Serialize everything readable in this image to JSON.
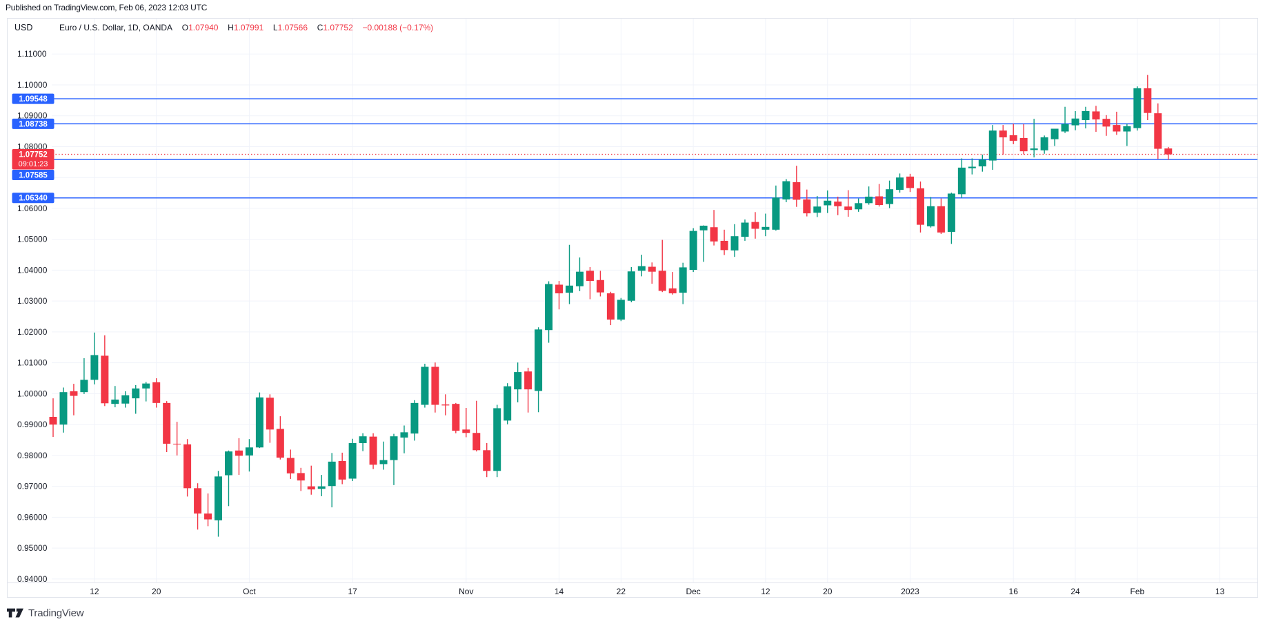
{
  "published_bar": {
    "text": "Published on TradingView.com, Feb 06, 2023 12:03 UTC"
  },
  "header": {
    "currency": "USD",
    "symbol_title": "Euro / U.S. Dollar, 1D, OANDA",
    "legend": {
      "o_label": "O",
      "o_value": "1.07940",
      "h_label": "H",
      "h_value": "1.07991",
      "l_label": "L",
      "l_value": "1.07566",
      "c_label": "C",
      "c_value": "1.07752",
      "change": "−0.00188 (−0.17%)"
    }
  },
  "footer": {
    "brand": "TradingView"
  },
  "colors": {
    "up": "#089981",
    "down": "#f23645",
    "level_line": "#2962ff",
    "last_price_line": "#f23645",
    "grid": "#f0f3fa",
    "border": "#e0e3eb",
    "text": "#131722",
    "brand_text": "#434651"
  },
  "price_axis": {
    "labels": [
      "1.11000",
      "1.10000",
      "1.09000",
      "1.08000",
      "1.06000",
      "1.05000",
      "1.04000",
      "1.03000",
      "1.02000",
      "1.01000",
      "1.00000",
      "0.99000",
      "0.98000",
      "0.97000",
      "0.96000",
      "0.95000",
      "0.94000"
    ],
    "grid_min": 0.94,
    "grid_max": 1.11,
    "grid_step": 0.01
  },
  "levels": {
    "blue_lines": [
      {
        "price": 1.09548,
        "label": "1.09548"
      },
      {
        "price": 1.08738,
        "label": "1.08738"
      },
      {
        "price": 1.07585,
        "label": "1.07585"
      },
      {
        "price": 1.0634,
        "label": "1.06340"
      }
    ],
    "last_price": {
      "price": 1.07752,
      "label": "1.07752",
      "countdown": "09:01:23"
    }
  },
  "x_axis": {
    "labels": [
      {
        "text": "12",
        "bar": 4
      },
      {
        "text": "20",
        "bar": 10
      },
      {
        "text": "Oct",
        "bar": 19
      },
      {
        "text": "17",
        "bar": 29
      },
      {
        "text": "Nov",
        "bar": 40
      },
      {
        "text": "14",
        "bar": 49
      },
      {
        "text": "22",
        "bar": 55
      },
      {
        "text": "Dec",
        "bar": 62
      },
      {
        "text": "12",
        "bar": 69
      },
      {
        "text": "20",
        "bar": 75
      },
      {
        "text": "2023",
        "bar": 83
      },
      {
        "text": "16",
        "bar": 93
      },
      {
        "text": "24",
        "bar": 99
      },
      {
        "text": "Feb",
        "bar": 105
      },
      {
        "text": "13",
        "bar": 113
      }
    ]
  },
  "chart_data": {
    "type": "candlestick",
    "title": "Euro / U.S. Dollar, 1D, OANDA",
    "ylim": [
      0.94,
      1.11
    ],
    "legend_position": "top-left",
    "grid": true,
    "candles": [
      {
        "d": "Sep 6",
        "o": 0.9925,
        "h": 0.9985,
        "l": 0.986,
        "c": 0.99
      },
      {
        "d": "Sep 7",
        "o": 0.99,
        "h": 1.002,
        "l": 0.9874,
        "c": 1.0005
      },
      {
        "d": "Sep 8",
        "o": 1.0008,
        "h": 1.0032,
        "l": 0.993,
        "c": 0.9993
      },
      {
        "d": "Sep 9",
        "o": 1.0005,
        "h": 1.0115,
        "l": 0.9999,
        "c": 1.0045
      },
      {
        "d": "Sep 12",
        "o": 1.0045,
        "h": 1.0198,
        "l": 1.003,
        "c": 1.0125
      },
      {
        "d": "Sep 13",
        "o": 1.0123,
        "h": 1.0189,
        "l": 0.996,
        "c": 0.9969
      },
      {
        "d": "Sep 14",
        "o": 0.9967,
        "h": 1.0025,
        "l": 0.9956,
        "c": 0.9981
      },
      {
        "d": "Sep 15",
        "o": 0.9968,
        "h": 1.0008,
        "l": 0.9955,
        "c": 0.9995
      },
      {
        "d": "Sep 16",
        "o": 0.9985,
        "h": 1.0028,
        "l": 0.9935,
        "c": 1.0017
      },
      {
        "d": "Sep 19",
        "o": 1.0017,
        "h": 1.0038,
        "l": 0.9975,
        "c": 1.0033
      },
      {
        "d": "Sep 20",
        "o": 1.0037,
        "h": 1.005,
        "l": 0.9955,
        "c": 0.997
      },
      {
        "d": "Sep 21",
        "o": 0.997,
        "h": 0.9976,
        "l": 0.9811,
        "c": 0.9838
      },
      {
        "d": "Sep 22",
        "o": 0.9838,
        "h": 0.9909,
        "l": 0.98,
        "c": 0.9836
      },
      {
        "d": "Sep 23",
        "o": 0.9836,
        "h": 0.9853,
        "l": 0.9667,
        "c": 0.9694
      },
      {
        "d": "Sep 26",
        "o": 0.9694,
        "h": 0.971,
        "l": 0.956,
        "c": 0.9612
      },
      {
        "d": "Sep 27",
        "o": 0.9612,
        "h": 0.9677,
        "l": 0.9571,
        "c": 0.9593
      },
      {
        "d": "Sep 28",
        "o": 0.959,
        "h": 0.975,
        "l": 0.9537,
        "c": 0.9732
      },
      {
        "d": "Sep 29",
        "o": 0.9736,
        "h": 0.9816,
        "l": 0.9636,
        "c": 0.9813
      },
      {
        "d": "Sep 30",
        "o": 0.9816,
        "h": 0.9856,
        "l": 0.9737,
        "c": 0.9799
      },
      {
        "d": "Oct 3",
        "o": 0.98,
        "h": 0.9853,
        "l": 0.9748,
        "c": 0.9826
      },
      {
        "d": "Oct 4",
        "o": 0.9826,
        "h": 1.0004,
        "l": 0.9824,
        "c": 0.9988
      },
      {
        "d": "Oct 5",
        "o": 0.9987,
        "h": 0.9998,
        "l": 0.9841,
        "c": 0.9884
      },
      {
        "d": "Oct 6",
        "o": 0.9886,
        "h": 0.9927,
        "l": 0.9787,
        "c": 0.9793
      },
      {
        "d": "Oct 7",
        "o": 0.9792,
        "h": 0.9819,
        "l": 0.9724,
        "c": 0.9742
      },
      {
        "d": "Oct 10",
        "o": 0.9743,
        "h": 0.976,
        "l": 0.9685,
        "c": 0.9719
      },
      {
        "d": "Oct 11",
        "o": 0.97,
        "h": 0.9767,
        "l": 0.9673,
        "c": 0.969
      },
      {
        "d": "Oct 12",
        "o": 0.9692,
        "h": 0.9737,
        "l": 0.9668,
        "c": 0.97
      },
      {
        "d": "Oct 13",
        "o": 0.9701,
        "h": 0.9808,
        "l": 0.9632,
        "c": 0.978
      },
      {
        "d": "Oct 14",
        "o": 0.9782,
        "h": 0.9809,
        "l": 0.9707,
        "c": 0.9722
      },
      {
        "d": "Oct 17",
        "o": 0.9725,
        "h": 0.9854,
        "l": 0.9717,
        "c": 0.984
      },
      {
        "d": "Oct 18",
        "o": 0.984,
        "h": 0.9872,
        "l": 0.9814,
        "c": 0.9862
      },
      {
        "d": "Oct 19",
        "o": 0.9861,
        "h": 0.9872,
        "l": 0.9756,
        "c": 0.977
      },
      {
        "d": "Oct 20",
        "o": 0.9772,
        "h": 0.9845,
        "l": 0.9754,
        "c": 0.9785
      },
      {
        "d": "Oct 21",
        "o": 0.9785,
        "h": 0.987,
        "l": 0.9704,
        "c": 0.9862
      },
      {
        "d": "Oct 24",
        "o": 0.9858,
        "h": 0.9897,
        "l": 0.9807,
        "c": 0.9875
      },
      {
        "d": "Oct 25",
        "o": 0.9871,
        "h": 0.9979,
        "l": 0.9848,
        "c": 0.997
      },
      {
        "d": "Oct 26",
        "o": 0.9964,
        "h": 1.0097,
        "l": 0.9955,
        "c": 1.0087
      },
      {
        "d": "Oct 27",
        "o": 1.0087,
        "h": 1.0101,
        "l": 0.9939,
        "c": 0.9964
      },
      {
        "d": "Oct 28",
        "o": 0.9965,
        "h": 0.9998,
        "l": 0.993,
        "c": 0.9962
      },
      {
        "d": "Oct 31",
        "o": 0.9967,
        "h": 0.997,
        "l": 0.9872,
        "c": 0.988
      },
      {
        "d": "Nov 1",
        "o": 0.9884,
        "h": 0.9954,
        "l": 0.9859,
        "c": 0.9873
      },
      {
        "d": "Nov 2",
        "o": 0.9873,
        "h": 0.9977,
        "l": 0.9813,
        "c": 0.9817
      },
      {
        "d": "Nov 3",
        "o": 0.9817,
        "h": 0.984,
        "l": 0.973,
        "c": 0.975
      },
      {
        "d": "Nov 4",
        "o": 0.975,
        "h": 0.9964,
        "l": 0.973,
        "c": 0.9953
      },
      {
        "d": "Nov 7",
        "o": 0.9913,
        "h": 1.0034,
        "l": 0.9901,
        "c": 1.0024
      },
      {
        "d": "Nov 8",
        "o": 1.0014,
        "h": 1.0101,
        "l": 0.9972,
        "c": 1.007
      },
      {
        "d": "Nov 9",
        "o": 1.0072,
        "h": 1.0084,
        "l": 0.9939,
        "c": 1.0014
      },
      {
        "d": "Nov 10",
        "o": 1.0009,
        "h": 1.0215,
        "l": 0.994,
        "c": 1.0208
      },
      {
        "d": "Nov 11",
        "o": 1.0206,
        "h": 1.0364,
        "l": 1.0165,
        "c": 1.0355
      },
      {
        "d": "Nov 14",
        "o": 1.0353,
        "h": 1.0365,
        "l": 1.0273,
        "c": 1.0325
      },
      {
        "d": "Nov 15",
        "o": 1.0327,
        "h": 1.0482,
        "l": 1.029,
        "c": 1.035
      },
      {
        "d": "Nov 16",
        "o": 1.0348,
        "h": 1.0441,
        "l": 1.0332,
        "c": 1.0395
      },
      {
        "d": "Nov 17",
        "o": 1.0398,
        "h": 1.041,
        "l": 1.0306,
        "c": 1.0365
      },
      {
        "d": "Nov 18",
        "o": 1.0368,
        "h": 1.0398,
        "l": 1.0315,
        "c": 1.0328
      },
      {
        "d": "Nov 21",
        "o": 1.0325,
        "h": 1.033,
        "l": 1.0222,
        "c": 1.024
      },
      {
        "d": "Nov 22",
        "o": 1.024,
        "h": 1.031,
        "l": 1.0235,
        "c": 1.0304
      },
      {
        "d": "Nov 23",
        "o": 1.0301,
        "h": 1.041,
        "l": 1.0296,
        "c": 1.0396
      },
      {
        "d": "Nov 24",
        "o": 1.0398,
        "h": 1.045,
        "l": 1.038,
        "c": 1.0413
      },
      {
        "d": "Nov 25",
        "o": 1.0411,
        "h": 1.0425,
        "l": 1.0356,
        "c": 1.0395
      },
      {
        "d": "Nov 28",
        "o": 1.0398,
        "h": 1.0498,
        "l": 1.0329,
        "c": 1.0333
      },
      {
        "d": "Nov 29",
        "o": 1.0341,
        "h": 1.0394,
        "l": 1.0321,
        "c": 1.0325
      },
      {
        "d": "Nov 30",
        "o": 1.0327,
        "h": 1.0424,
        "l": 1.029,
        "c": 1.0409
      },
      {
        "d": "Dec 1",
        "o": 1.0401,
        "h": 1.0536,
        "l": 1.0394,
        "c": 1.0527
      },
      {
        "d": "Dec 2",
        "o": 1.0529,
        "h": 1.0545,
        "l": 1.0427,
        "c": 1.0544
      },
      {
        "d": "Dec 5",
        "o": 1.0539,
        "h": 1.0595,
        "l": 1.048,
        "c": 1.0493
      },
      {
        "d": "Dec 6",
        "o": 1.0495,
        "h": 1.0531,
        "l": 1.0449,
        "c": 1.0465
      },
      {
        "d": "Dec 7",
        "o": 1.0464,
        "h": 1.0549,
        "l": 1.0443,
        "c": 1.051
      },
      {
        "d": "Dec 8",
        "o": 1.0508,
        "h": 1.0564,
        "l": 1.0495,
        "c": 1.0554
      },
      {
        "d": "Dec 9",
        "o": 1.0556,
        "h": 1.0588,
        "l": 1.0502,
        "c": 1.0534
      },
      {
        "d": "Dec 12",
        "o": 1.0531,
        "h": 1.0583,
        "l": 1.051,
        "c": 1.054
      },
      {
        "d": "Dec 13",
        "o": 1.0531,
        "h": 1.0674,
        "l": 1.0528,
        "c": 1.0635
      },
      {
        "d": "Dec 14",
        "o": 1.0629,
        "h": 1.0695,
        "l": 1.062,
        "c": 1.0688
      },
      {
        "d": "Dec 15",
        "o": 1.0685,
        "h": 1.0738,
        "l": 1.0605,
        "c": 1.0628
      },
      {
        "d": "Dec 16",
        "o": 1.0629,
        "h": 1.0661,
        "l": 1.0574,
        "c": 1.0584
      },
      {
        "d": "Dec 19",
        "o": 1.0586,
        "h": 1.064,
        "l": 1.0572,
        "c": 1.0606
      },
      {
        "d": "Dec 20",
        "o": 1.061,
        "h": 1.0658,
        "l": 1.0585,
        "c": 1.0625
      },
      {
        "d": "Dec 21",
        "o": 1.0622,
        "h": 1.0638,
        "l": 1.0578,
        "c": 1.0607
      },
      {
        "d": "Dec 22",
        "o": 1.0606,
        "h": 1.0659,
        "l": 1.0573,
        "c": 1.0595
      },
      {
        "d": "Dec 23",
        "o": 1.0597,
        "h": 1.0632,
        "l": 1.0589,
        "c": 1.0617
      },
      {
        "d": "Dec 27",
        "o": 1.0617,
        "h": 1.0671,
        "l": 1.0612,
        "c": 1.0638
      },
      {
        "d": "Dec 28",
        "o": 1.0639,
        "h": 1.0679,
        "l": 1.0606,
        "c": 1.0611
      },
      {
        "d": "Dec 29",
        "o": 1.0614,
        "h": 1.069,
        "l": 1.0601,
        "c": 1.0662
      },
      {
        "d": "Dec 30",
        "o": 1.066,
        "h": 1.0713,
        "l": 1.0651,
        "c": 1.07
      },
      {
        "d": "Jan 2",
        "o": 1.0703,
        "h": 1.0712,
        "l": 1.0653,
        "c": 1.0666
      },
      {
        "d": "Jan 3",
        "o": 1.0665,
        "h": 1.0687,
        "l": 1.0522,
        "c": 1.0547
      },
      {
        "d": "Jan 4",
        "o": 1.0542,
        "h": 1.0637,
        "l": 1.0538,
        "c": 1.0607
      },
      {
        "d": "Jan 5",
        "o": 1.0607,
        "h": 1.0632,
        "l": 1.0517,
        "c": 1.0522
      },
      {
        "d": "Jan 6",
        "o": 1.0524,
        "h": 1.0651,
        "l": 1.0485,
        "c": 1.0648
      },
      {
        "d": "Jan 9",
        "o": 1.0646,
        "h": 1.0762,
        "l": 1.0634,
        "c": 1.0732
      },
      {
        "d": "Jan 10",
        "o": 1.073,
        "h": 1.0762,
        "l": 1.071,
        "c": 1.0735
      },
      {
        "d": "Jan 11",
        "o": 1.0736,
        "h": 1.0774,
        "l": 1.0719,
        "c": 1.0758
      },
      {
        "d": "Jan 12",
        "o": 1.0755,
        "h": 1.087,
        "l": 1.0725,
        "c": 1.0852
      },
      {
        "d": "Jan 13",
        "o": 1.0852,
        "h": 1.087,
        "l": 1.0774,
        "c": 1.083
      },
      {
        "d": "Jan 16",
        "o": 1.0837,
        "h": 1.0874,
        "l": 1.0808,
        "c": 1.0819
      },
      {
        "d": "Jan 17",
        "o": 1.0828,
        "h": 1.0873,
        "l": 1.0775,
        "c": 1.0785
      },
      {
        "d": "Jan 18",
        "o": 1.0789,
        "h": 1.089,
        "l": 1.0765,
        "c": 1.0794
      },
      {
        "d": "Jan 19",
        "o": 1.0788,
        "h": 1.0836,
        "l": 1.0777,
        "c": 1.083
      },
      {
        "d": "Jan 20",
        "o": 1.0824,
        "h": 1.0858,
        "l": 1.0802,
        "c": 1.0858
      },
      {
        "d": "Jan 23",
        "o": 1.0849,
        "h": 1.0929,
        "l": 1.0844,
        "c": 1.0873
      },
      {
        "d": "Jan 24",
        "o": 1.0869,
        "h": 1.0915,
        "l": 1.0853,
        "c": 1.0891
      },
      {
        "d": "Jan 25",
        "o": 1.0886,
        "h": 1.0929,
        "l": 1.0859,
        "c": 1.0915
      },
      {
        "d": "Jan 26",
        "o": 1.0914,
        "h": 1.0932,
        "l": 1.0848,
        "c": 1.0888
      },
      {
        "d": "Jan 27",
        "o": 1.089,
        "h": 1.0902,
        "l": 1.0835,
        "c": 1.0865
      },
      {
        "d": "Jan 30",
        "o": 1.087,
        "h": 1.0913,
        "l": 1.0838,
        "c": 1.0849
      },
      {
        "d": "Jan 31",
        "o": 1.0849,
        "h": 1.0874,
        "l": 1.0802,
        "c": 1.0866
      },
      {
        "d": "Feb 1",
        "o": 1.086,
        "h": 1.0995,
        "l": 1.0852,
        "c": 1.0989
      },
      {
        "d": "Feb 2",
        "o": 1.0989,
        "h": 1.1032,
        "l": 1.0886,
        "c": 1.0909
      },
      {
        "d": "Feb 3",
        "o": 1.0908,
        "h": 1.094,
        "l": 1.076,
        "c": 1.0793
      },
      {
        "d": "Feb 6",
        "o": 1.0794,
        "h": 1.0799,
        "l": 1.0757,
        "c": 1.0775
      }
    ]
  }
}
